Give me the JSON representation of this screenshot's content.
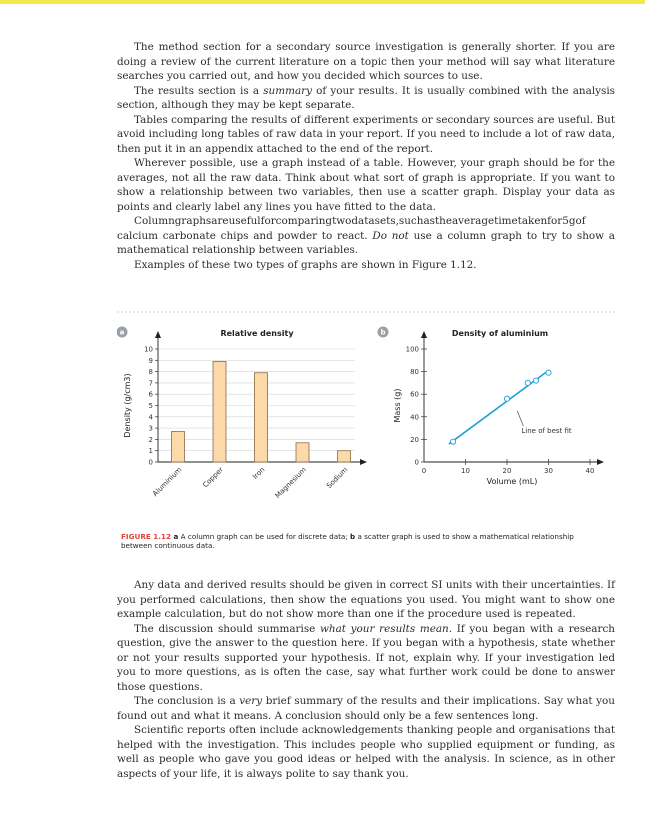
{
  "paragraphs_top": [
    {
      "indent": true,
      "parts": [
        {
          "t": "The method section for a secondary source investigation is generally shorter. If you are doing a review of the current literature on a topic then your method will say what literature searches you carried out, and how you decided which sources to use."
        }
      ]
    },
    {
      "indent": true,
      "parts": [
        {
          "t": "The results section is a "
        },
        {
          "t": "summary",
          "i": true
        },
        {
          "t": " of your results. It is usually combined with the analysis section, although they may be kept separate."
        }
      ]
    },
    {
      "indent": true,
      "parts": [
        {
          "t": "Tables comparing the results of different experiments or secondary sources are useful. But avoid including long tables of raw data in your report. If you need to include a lot of raw data, then put it in an appendix attached to the end of the report."
        }
      ]
    },
    {
      "indent": true,
      "parts": [
        {
          "t": "Wherever possible, use a graph instead of a table. However, your graph should be for the averages, not all the raw data. Think about what sort of graph is appropriate. If you want to show a relationship between two variables, then use a scatter graph. Display your data as points and clearly label any lines you have fitted to the data."
        }
      ]
    },
    {
      "indent": true,
      "parts": [
        {
          "t": "Columngraphsareusefulforcomparingtwodatasets,suchastheaveragetimetakenfor5gof"
        }
      ]
    },
    {
      "indent": false,
      "parts": [
        {
          "t": "calcium carbonate chips and powder to react. "
        },
        {
          "t": "Do not",
          "i": true
        },
        {
          "t": " use a column graph to try to show a mathematical relationship between variables."
        }
      ]
    },
    {
      "indent": true,
      "parts": [
        {
          "t": "Examples of these two types of graphs are shown in Figure 1.12."
        }
      ]
    }
  ],
  "paragraphs_bottom": [
    {
      "indent": true,
      "parts": [
        {
          "t": "Any data and derived results should be given in correct SI units with their uncertainties. If you performed calculations, then show the equations you used. You might want to show one example calculation, but do not show more than one if the procedure used is repeated."
        }
      ]
    },
    {
      "indent": true,
      "parts": [
        {
          "t": "The discussion should summarise "
        },
        {
          "t": "what your results mean.",
          "i": true
        },
        {
          "t": " If you began with a research question, give the answer to the question here. If you began with a hypothesis, state whether or not your results supported your hypothesis. If not, explain why. If your investigation led you to more questions, as is often the case, say what further work could be done to answer those questions."
        }
      ]
    },
    {
      "indent": true,
      "parts": [
        {
          "t": "The conclusion is a "
        },
        {
          "t": "very",
          "i": true
        },
        {
          "t": " brief summary of the results and their implications. Say what you found out and what it means. A conclusion should only be a few sentences long."
        }
      ]
    },
    {
      "indent": true,
      "parts": [
        {
          "t": "Scientific reports often include acknowledgements thanking people and organisations that helped with the investigation. This includes people who supplied equipment or funding, as well as people who gave you good ideas or helped with the analysis. In science, as in other aspects of your life, it is always polite to say thank you."
        }
      ]
    }
  ],
  "colors": {
    "accent_bar": "#f1ea4a",
    "bar_fill": "#fbd9a8",
    "bar_stroke": "#8a6b45",
    "line": "#1ea1d8",
    "caption_label": "#e0453a",
    "panel_badge": "#9aa0a6"
  },
  "figure": {
    "caption_label": "FIGURE 1.12",
    "caption_text_a": " a",
    "caption_text_b": " A column graph can be used for discrete data; ",
    "caption_text_c": "b",
    "caption_text_d": " a scatter graph is used to show a mathematical relationship between continuous data.",
    "panel_a_badge": "a",
    "panel_b_badge": "b"
  },
  "chart_data": [
    {
      "type": "bar",
      "title": "Relative density",
      "ylabel": "Density (g/cm3)",
      "xlabel": "",
      "categories": [
        "Aluminium",
        "Copper",
        "Iron",
        "Magnesium",
        "Sodium"
      ],
      "values": [
        2.7,
        8.9,
        7.9,
        1.7,
        1.0
      ],
      "ylim": [
        0,
        10
      ],
      "yticks": [
        0,
        1,
        2,
        3,
        4,
        5,
        6,
        7,
        8,
        9,
        10
      ],
      "grid": true
    },
    {
      "type": "scatter",
      "title": "Density of aluminium",
      "xlabel": "Volume (mL)",
      "ylabel": "Mass (g)",
      "xlim": [
        0,
        40
      ],
      "ylim": [
        0,
        100
      ],
      "xticks": [
        0,
        10,
        20,
        30,
        40
      ],
      "yticks": [
        0,
        20,
        40,
        60,
        80,
        100
      ],
      "points": [
        {
          "x": 7,
          "y": 18
        },
        {
          "x": 20,
          "y": 56
        },
        {
          "x": 25,
          "y": 70
        },
        {
          "x": 27,
          "y": 72
        },
        {
          "x": 30,
          "y": 79
        }
      ],
      "fit_line": {
        "x": [
          6,
          30
        ],
        "y": [
          16,
          81
        ]
      },
      "annotation": "Line of best fit",
      "grid": false
    }
  ]
}
